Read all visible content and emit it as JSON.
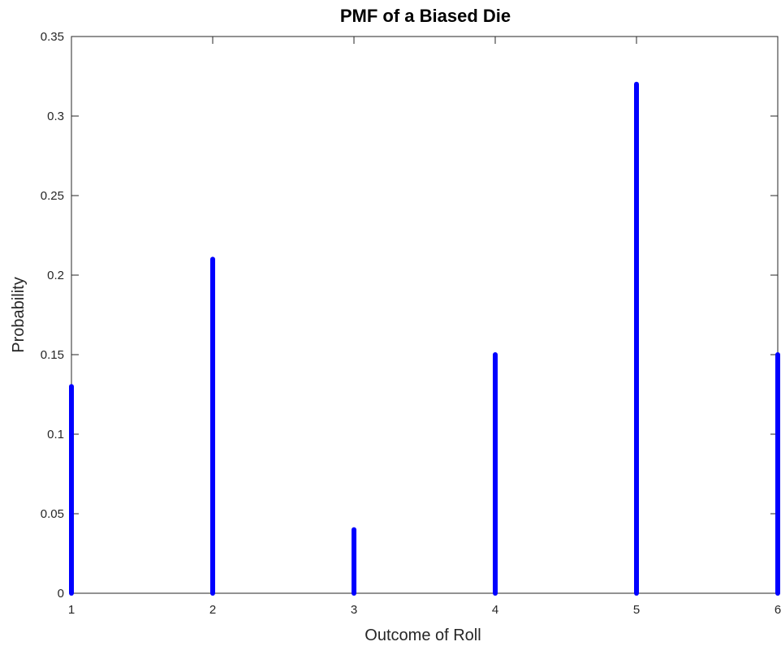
{
  "chart_data": {
    "type": "bar",
    "title": "PMF of a Biased Die",
    "xlabel": "Outcome of Roll",
    "ylabel": "Probability",
    "x": [
      1,
      2,
      3,
      4,
      5,
      6
    ],
    "values": [
      0.13,
      0.21,
      0.04,
      0.15,
      0.32,
      0.15
    ],
    "xlim": [
      1,
      6
    ],
    "ylim": [
      0,
      0.35
    ],
    "xticks": [
      "1",
      "2",
      "3",
      "4",
      "5",
      "6"
    ],
    "yticks": [
      "0",
      "0.05",
      "0.1",
      "0.15",
      "0.2",
      "0.25",
      "0.3",
      "0.35"
    ],
    "color": "#0000ff",
    "grid": false,
    "legend": false
  }
}
